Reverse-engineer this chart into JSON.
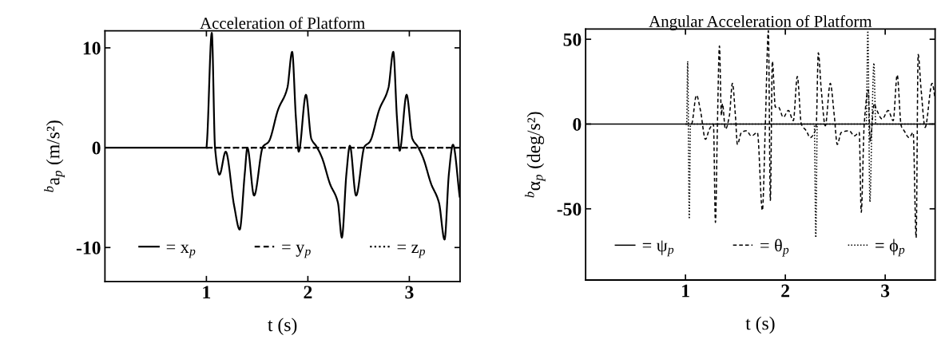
{
  "chart_data": [
    {
      "type": "line",
      "title": "Acceleration of Platform",
      "xlabel": "t (s)",
      "ylabel": "$^{b}$a$_{p}$ (m/s²)",
      "xlim": [
        0,
        3.5
      ],
      "xticks": [
        1,
        2,
        3
      ],
      "ylim": [
        -13.4,
        11.7
      ],
      "yticks": [
        -10,
        0,
        10
      ],
      "legend": "bottom",
      "series": [
        {
          "name": "= x$_{p}$",
          "color": "#000000",
          "line_style": "solid",
          "x": [
            0,
            1.0,
            1.005,
            1.053,
            1.085,
            1.129,
            1.19,
            1.273,
            1.328,
            1.378,
            1.404,
            1.47,
            1.557,
            1.614,
            1.706,
            1.798,
            1.845,
            1.882,
            1.91,
            1.981,
            2.034,
            2.086,
            2.139,
            2.217,
            2.296,
            2.335,
            2.38,
            2.414,
            2.475,
            2.558,
            2.611,
            2.703,
            2.794,
            2.842,
            2.878,
            2.905,
            2.973,
            3.03,
            3.083,
            3.135,
            3.214,
            3.292,
            3.347,
            3.39,
            3.43,
            3.496
          ],
          "values": [
            0,
            0,
            0.5,
            11.5,
            0,
            -2.7,
            -0.4,
            -5.8,
            -8.2,
            -2.6,
            0,
            -4.8,
            0.1,
            0.6,
            3.8,
            6.0,
            9.6,
            3.0,
            -0.4,
            5.3,
            0.9,
            0.1,
            -1.0,
            -3.6,
            -5.5,
            -9.0,
            -2.6,
            0.2,
            -4.8,
            0.1,
            0.6,
            3.8,
            6.0,
            9.6,
            3.0,
            -0.3,
            5.3,
            0.9,
            0.1,
            -1.0,
            -3.6,
            -5.5,
            -9.2,
            -2.6,
            0.3,
            -4.9
          ]
        },
        {
          "name": "= y$_{p}$",
          "color": "#000000",
          "line_style": "dashed",
          "x": [
            1.0,
            3.5
          ],
          "values": [
            0,
            0
          ]
        },
        {
          "name": "= z$_{p}$",
          "color": "#000000",
          "line_style": "dotted",
          "x": [
            1.0,
            3.5
          ],
          "values": [
            0,
            0
          ]
        }
      ]
    },
    {
      "type": "line",
      "title": "Angular Acceleration of Platform",
      "xlabel": "t (s)",
      "ylabel": "$^{b}$α$_{p}$ (deg/s²)",
      "xlim": [
        0,
        3.5
      ],
      "xticks": [
        1,
        2,
        3
      ],
      "ylim": [
        -92,
        56
      ],
      "yticks": [
        -50,
        0,
        50
      ],
      "legend": "bottom",
      "series": [
        {
          "name": "= ψ$_{p}$",
          "color": "#000000",
          "line_style": "solid",
          "x": [
            0,
            3.5
          ],
          "values": [
            0,
            0
          ]
        },
        {
          "name": "= θ$_{p}$",
          "color": "#000000",
          "line_style": "dashed",
          "x": [
            1.0,
            1.06,
            1.11,
            1.15,
            1.2,
            1.24,
            1.28,
            1.3,
            1.32,
            1.34,
            1.36,
            1.37,
            1.4,
            1.44,
            1.47,
            1.5,
            1.52,
            1.56,
            1.61,
            1.66,
            1.72,
            1.77,
            1.8,
            1.83,
            1.85,
            1.87,
            1.9,
            1.93,
            1.98,
            2.03,
            2.08,
            2.12,
            2.16,
            2.21,
            2.25,
            2.29,
            2.31,
            2.33,
            2.36,
            2.4,
            2.45,
            2.49,
            2.52,
            2.56,
            2.64,
            2.69,
            2.74,
            2.76,
            2.79,
            2.83,
            2.85,
            2.89,
            2.91,
            2.97,
            3.03,
            3.08,
            3.12,
            3.16,
            3.19,
            3.24,
            3.28,
            3.31,
            3.33,
            3.36,
            3.4,
            3.47,
            3.5
          ],
          "values": [
            0,
            0,
            17,
            8,
            -9,
            -3,
            0,
            -58,
            0,
            46,
            5,
            12,
            -3,
            5,
            24,
            5,
            -12,
            -5,
            -4,
            -7,
            -5,
            -51,
            0,
            55,
            -45,
            37,
            10,
            10,
            4,
            8,
            2,
            28,
            0,
            -4,
            -8,
            -5,
            0,
            42,
            20,
            -1,
            24,
            5,
            -12,
            -5,
            -4,
            -7,
            -5,
            -52,
            0,
            20,
            -10,
            12,
            9,
            3,
            8,
            2,
            29,
            -1,
            -4,
            -8,
            -5,
            -67,
            41,
            20,
            -2,
            24,
            15
          ]
        },
        {
          "name": "= ϕ$_{p}$",
          "color": "#000000",
          "line_style": "dotted",
          "x": [
            1.0,
            1.012,
            1.022,
            1.038,
            1.05,
            2.29,
            2.305,
            2.32,
            2.81,
            2.826,
            2.847,
            2.867,
            2.887,
            2.905,
            3.5
          ],
          "values": [
            0,
            0,
            37,
            -56,
            0,
            0,
            -67,
            0,
            0,
            55,
            -46,
            0,
            36,
            0,
            0
          ]
        }
      ]
    }
  ]
}
